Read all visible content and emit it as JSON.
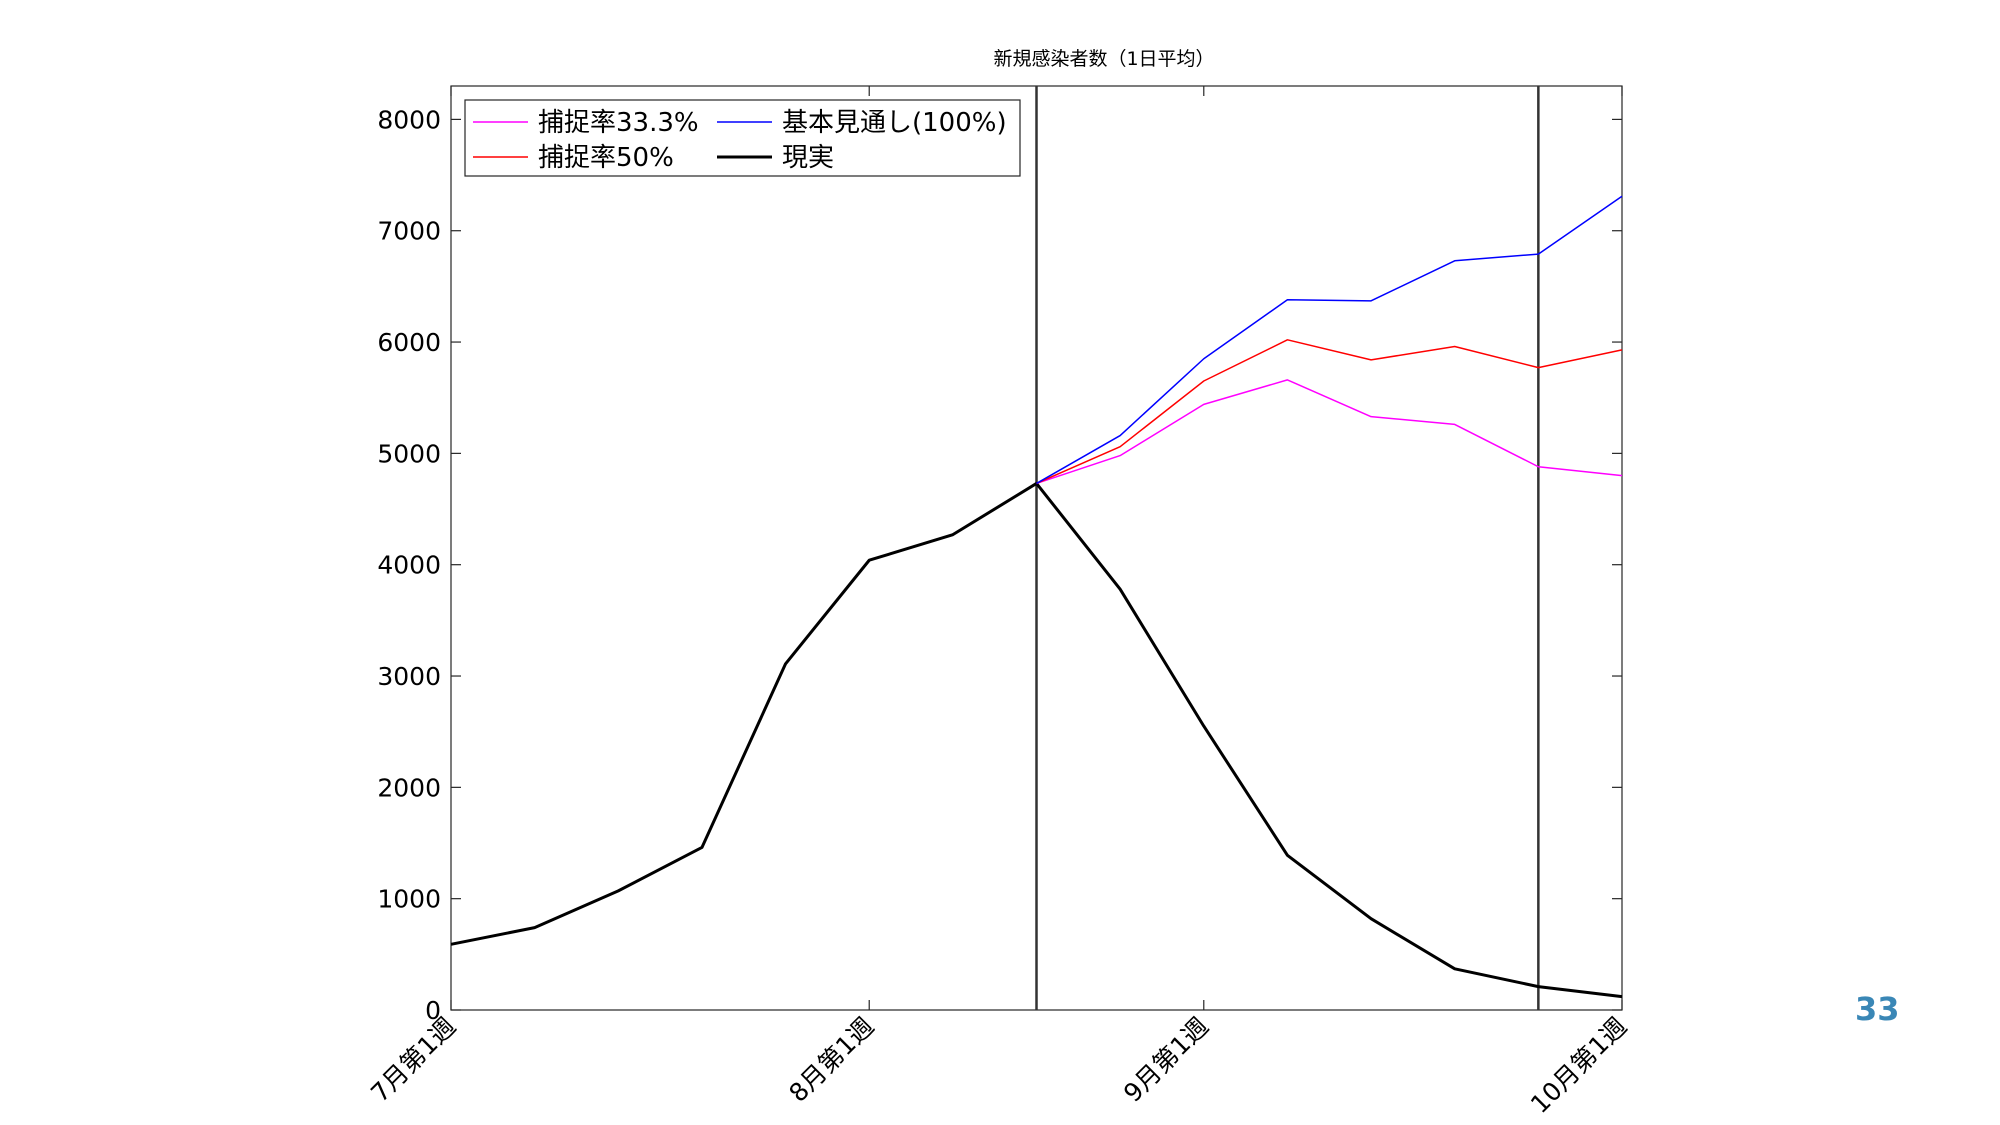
{
  "page_number": "33",
  "page_number_color": "#3a87b6",
  "chart_data": {
    "type": "line",
    "title": "新規感染者数（1日平均）",
    "xlabel": "",
    "ylabel": "",
    "x": [
      0,
      1,
      2,
      3,
      4,
      5,
      6,
      7,
      8,
      9,
      10,
      11,
      12,
      13,
      14
    ],
    "x_tick_positions": [
      0,
      5,
      9,
      14
    ],
    "x_tick_labels": [
      "7月第1週",
      "8月第1週",
      "9月第1週",
      "10月第1週"
    ],
    "ylim": [
      0,
      8300
    ],
    "y_ticks": [
      0,
      1000,
      2000,
      3000,
      4000,
      5000,
      6000,
      7000,
      8000
    ],
    "vertical_lines": [
      7,
      13
    ],
    "grid": false,
    "legend_position": "top-left",
    "series": [
      {
        "name": "捕捉率33.3%",
        "color": "#ff00ff",
        "width": 1.5,
        "x": [
          7,
          8,
          9,
          10,
          11,
          12,
          13,
          14
        ],
        "values": [
          4730,
          4980,
          5440,
          5660,
          5330,
          5260,
          4880,
          4800
        ]
      },
      {
        "name": "捕捉率50%",
        "color": "#ff0000",
        "width": 1.5,
        "x": [
          7,
          8,
          9,
          10,
          11,
          12,
          13,
          14
        ],
        "values": [
          4730,
          5060,
          5650,
          6020,
          5840,
          5960,
          5770,
          5930
        ]
      },
      {
        "name": "基本見通し(100%)",
        "color": "#0000ff",
        "width": 1.5,
        "x": [
          7,
          8,
          9,
          10,
          11,
          12,
          13,
          14
        ],
        "values": [
          4730,
          5160,
          5850,
          6380,
          6370,
          6730,
          6790,
          7310
        ]
      },
      {
        "name": "現実",
        "color": "#000000",
        "width": 3,
        "x": [
          0,
          1,
          2,
          3,
          4,
          5,
          6,
          7,
          8,
          9,
          10,
          11,
          12,
          13,
          14
        ],
        "values": [
          590,
          740,
          1070,
          1460,
          3110,
          4040,
          4270,
          4730,
          3780,
          2550,
          1390,
          820,
          370,
          210,
          120
        ]
      }
    ]
  }
}
